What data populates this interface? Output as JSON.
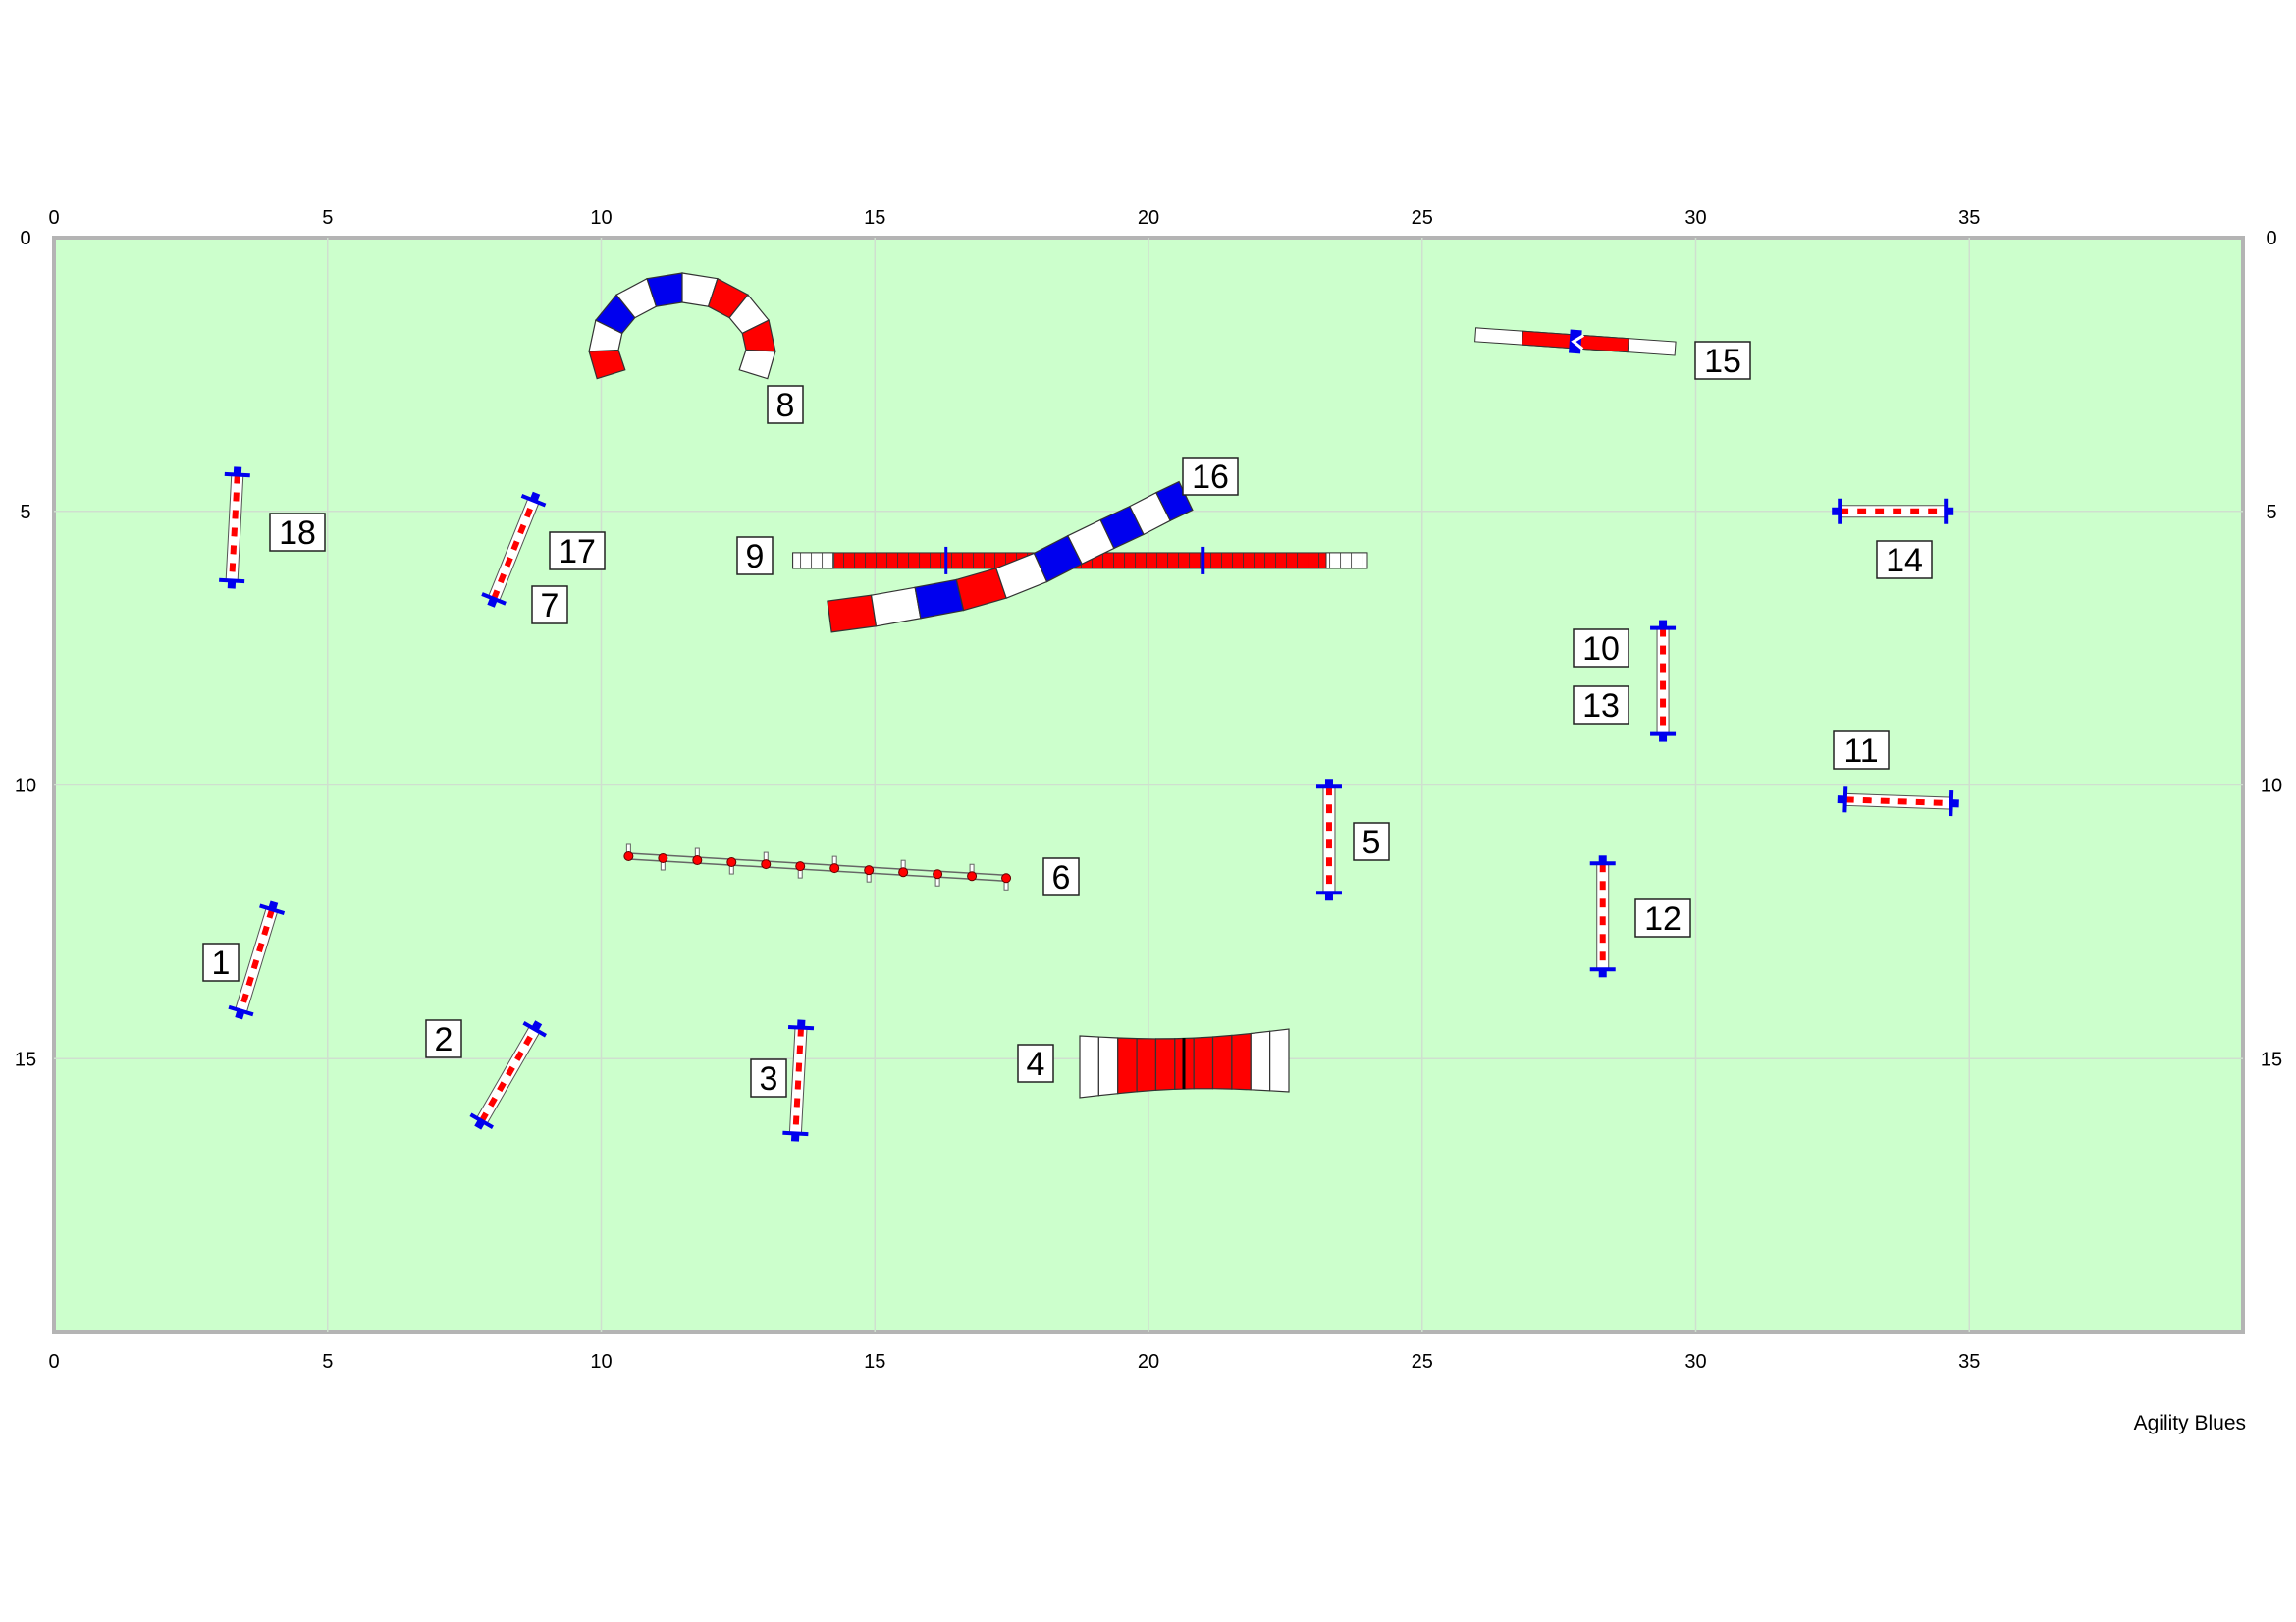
{
  "footer": {
    "credit": "Agility Blues"
  },
  "colors": {
    "field": "#ccffcc",
    "field_border": "#b4b4b4",
    "grid": "#cfdfcf",
    "red": "#ff0000",
    "blue": "#0000ee",
    "white": "#ffffff"
  },
  "chart_data": {
    "type": "course_map",
    "x_range": [
      0,
      40
    ],
    "y_range": [
      0,
      20
    ],
    "x_ticks": [
      "0",
      "5",
      "10",
      "15",
      "20",
      "25",
      "30",
      "35"
    ],
    "y_ticks": [
      "0",
      "5",
      "10",
      "15"
    ],
    "obstacles": [
      {
        "n": "1",
        "kind": "jump",
        "x": 3.7,
        "y": 13.2,
        "angle": 107
      },
      {
        "n": "2",
        "kind": "jump",
        "x": 8.3,
        "y": 15.3,
        "angle": -60
      },
      {
        "n": "3",
        "kind": "jump",
        "x": 13.6,
        "y": 15.4,
        "angle": 93
      },
      {
        "n": "4",
        "kind": "table_tunnel",
        "x": 20.6,
        "y": 15.1
      },
      {
        "n": "5",
        "kind": "jump",
        "x": 23.3,
        "y": 11.0,
        "angle": 90
      },
      {
        "n": "6",
        "kind": "weave",
        "x1": 10.5,
        "y1": 11.3,
        "x2": 17.4,
        "y2": 11.7
      },
      {
        "n": "7",
        "kind": "jump",
        "x": 8.4,
        "y": 5.7,
        "angle": -68
      },
      {
        "n": "8",
        "kind": "arc_tunnel",
        "x": 11.5,
        "y": 2.6
      },
      {
        "n": "9",
        "kind": "dogwalk",
        "x1": 13.5,
        "y1": 5.9,
        "x2": 24.0,
        "y2": 5.9
      },
      {
        "n": "10",
        "kind": "jump",
        "x": 29.4,
        "y": 8.1,
        "angle": 90
      },
      {
        "n": "11",
        "kind": "jump",
        "x": 33.7,
        "y": 10.3,
        "angle": 2
      },
      {
        "n": "12",
        "kind": "jump",
        "x": 28.3,
        "y": 12.4,
        "angle": 90
      },
      {
        "n": "13",
        "kind": "jump",
        "x": 29.4,
        "y": 8.1,
        "angle": 90
      },
      {
        "n": "14",
        "kind": "jump",
        "x": 33.6,
        "y": 5.0,
        "angle": 0
      },
      {
        "n": "15",
        "kind": "seesaw",
        "x": 27.8,
        "y": 1.9,
        "angle": 4
      },
      {
        "n": "16",
        "kind": "s_tunnel"
      },
      {
        "n": "17",
        "kind": "jump",
        "x": 8.4,
        "y": 5.7,
        "angle": -68
      },
      {
        "n": "18",
        "kind": "jump",
        "x": 3.3,
        "y": 5.3,
        "angle": 93
      }
    ]
  }
}
